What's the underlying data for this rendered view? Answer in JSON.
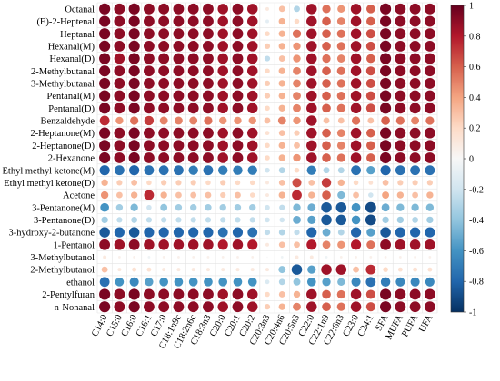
{
  "chart_data": {
    "type": "heatmap",
    "style": "bubble correlation matrix (circle size and color encode r)",
    "rows": [
      "Octanal",
      "(E)-2-Heptenal",
      "Heptanal",
      "Hexanal(M)",
      "Hexanal(D)",
      "2-Methylbutanal",
      "3-Methylbutanal",
      "Pentanal(M)",
      "Pentanal(D)",
      "Benzaldehyde",
      "2-Heptanone(M)",
      "2-Heptanone(D)",
      "2-Hexanone",
      "Ethyl methyl ketone(M)",
      "Ethyl methyl ketone(D)",
      "Acetone",
      "3-Pentanone(M)",
      "3-Pentanone(D)",
      "3-hydroxy-2-butanone",
      "1-Pentanol",
      "3-Methylbutanol",
      "2-Methylbutanol",
      "ethanol",
      "2-Pentylfuran",
      "n-Nonanal"
    ],
    "columns": [
      "C14:0",
      "C15:0",
      "C16:0",
      "C16:1",
      "C17:0",
      "C18:1n9c",
      "C18:2n6c",
      "C18:3n3",
      "C20:0",
      "C20:1",
      "C20:2",
      "C20:3n3",
      "C20:4n6",
      "C20:5n3",
      "C22:0",
      "C22:1n9",
      "C22:6n3",
      "C23:0",
      "C24:1",
      "SFA",
      "MUFA",
      "PUFA",
      "UFA"
    ],
    "colorbar": {
      "ticks": [
        "1",
        "0.8",
        "0.6",
        "0.4",
        "0.2",
        "0",
        "-0.2",
        "-0.4",
        "-0.6",
        "-0.8",
        "-1"
      ],
      "range": [
        -1,
        1
      ],
      "colors": [
        "#053061",
        "#2166ac",
        "#4393c3",
        "#92c5de",
        "#d1e5f0",
        "#f7f7f7",
        "#fddbc7",
        "#f4a582",
        "#d6604d",
        "#b2182b",
        "#67001f"
      ]
    },
    "values": [
      [
        0.95,
        0.9,
        0.95,
        0.9,
        0.9,
        0.9,
        0.9,
        0.9,
        0.85,
        0.9,
        0.85,
        0.1,
        0.3,
        -0.3,
        0.85,
        0.55,
        0.45,
        0.85,
        0.6,
        0.95,
        0.9,
        0.9,
        0.9
      ],
      [
        0.95,
        0.9,
        0.95,
        0.9,
        0.9,
        0.9,
        0.9,
        0.9,
        0.85,
        0.9,
        0.85,
        -0.1,
        0.35,
        0.2,
        0.85,
        0.6,
        0.5,
        0.85,
        0.6,
        0.95,
        0.9,
        0.9,
        0.9
      ],
      [
        0.95,
        0.9,
        0.95,
        0.9,
        0.9,
        0.9,
        0.9,
        0.9,
        0.85,
        0.9,
        0.85,
        0.2,
        0.35,
        0.55,
        0.85,
        0.6,
        0.55,
        0.85,
        0.65,
        0.95,
        0.9,
        0.9,
        0.9
      ],
      [
        0.95,
        0.9,
        0.95,
        0.9,
        0.9,
        0.9,
        0.9,
        0.9,
        0.85,
        0.9,
        0.85,
        0.25,
        0.35,
        0.45,
        0.85,
        0.6,
        0.55,
        0.85,
        0.65,
        0.95,
        0.9,
        0.9,
        0.9
      ],
      [
        0.95,
        0.85,
        0.95,
        0.9,
        0.9,
        0.9,
        0.9,
        0.9,
        0.85,
        0.9,
        0.85,
        -0.25,
        0.3,
        0.45,
        0.85,
        0.55,
        0.5,
        0.85,
        0.6,
        0.95,
        0.9,
        0.9,
        0.9
      ],
      [
        0.95,
        0.9,
        0.95,
        0.9,
        0.9,
        0.9,
        0.9,
        0.9,
        0.85,
        0.9,
        0.85,
        0.2,
        0.35,
        0.5,
        0.85,
        0.6,
        0.55,
        0.85,
        0.65,
        0.95,
        0.9,
        0.9,
        0.9
      ],
      [
        0.95,
        0.9,
        0.95,
        0.9,
        0.9,
        0.9,
        0.9,
        0.9,
        0.85,
        0.9,
        0.85,
        0.25,
        0.35,
        0.5,
        0.85,
        0.6,
        0.55,
        0.85,
        0.65,
        0.95,
        0.9,
        0.9,
        0.9
      ],
      [
        0.95,
        0.9,
        0.95,
        0.9,
        0.9,
        0.9,
        0.9,
        0.9,
        0.85,
        0.9,
        0.85,
        0.25,
        0.35,
        0.5,
        0.85,
        0.6,
        0.55,
        0.85,
        0.65,
        0.95,
        0.9,
        0.9,
        0.9
      ],
      [
        0.95,
        0.9,
        0.95,
        0.9,
        0.9,
        0.9,
        0.9,
        0.9,
        0.85,
        0.9,
        0.85,
        0.2,
        0.35,
        0.5,
        0.85,
        0.6,
        0.55,
        0.85,
        0.65,
        0.95,
        0.9,
        0.9,
        0.9
      ],
      [
        0.75,
        0.45,
        0.55,
        0.7,
        0.5,
        0.5,
        0.5,
        0.55,
        0.45,
        0.45,
        0.45,
        0.3,
        0.5,
        0.45,
        0.85,
        0.3,
        0.3,
        0.55,
        0.3,
        0.6,
        0.55,
        0.5,
        0.55
      ],
      [
        0.95,
        0.9,
        0.95,
        0.9,
        0.9,
        0.9,
        0.9,
        0.9,
        0.85,
        0.9,
        0.85,
        0.15,
        0.3,
        0.25,
        0.85,
        0.6,
        0.5,
        0.85,
        0.6,
        0.95,
        0.9,
        0.9,
        0.9
      ],
      [
        0.95,
        0.9,
        0.95,
        0.9,
        0.9,
        0.9,
        0.9,
        0.9,
        0.85,
        0.9,
        0.85,
        0.2,
        0.35,
        0.3,
        0.85,
        0.6,
        0.5,
        0.85,
        0.6,
        0.95,
        0.9,
        0.9,
        0.9
      ],
      [
        0.95,
        0.9,
        0.95,
        0.9,
        0.9,
        0.9,
        0.9,
        0.9,
        0.85,
        0.9,
        0.85,
        0.2,
        0.35,
        0.45,
        0.85,
        0.6,
        0.55,
        0.85,
        0.6,
        0.95,
        0.9,
        0.9,
        0.9
      ],
      [
        -0.8,
        -0.75,
        -0.8,
        -0.75,
        -0.75,
        -0.75,
        -0.7,
        -0.75,
        -0.7,
        -0.7,
        -0.7,
        -0.2,
        -0.3,
        0.2,
        -0.7,
        -0.3,
        -0.3,
        -0.75,
        -0.55,
        -0.8,
        -0.75,
        -0.75,
        -0.75
      ],
      [
        0.35,
        0.25,
        0.3,
        0.2,
        0.25,
        0.25,
        0.25,
        0.2,
        0.25,
        0.2,
        0.2,
        0.1,
        0.3,
        0.65,
        0.3,
        0.7,
        0.35,
        0.2,
        0.15,
        0.3,
        0.25,
        0.25,
        0.25
      ],
      [
        0.45,
        0.3,
        0.35,
        0.75,
        0.35,
        0.3,
        0.3,
        0.3,
        0.25,
        0.3,
        0.2,
        0.1,
        0.35,
        0.75,
        0.35,
        0.6,
        -0.45,
        0.3,
        -0.2,
        0.4,
        0.35,
        0.3,
        0.35
      ],
      [
        -0.6,
        -0.35,
        -0.45,
        -0.2,
        -0.4,
        -0.35,
        -0.35,
        -0.35,
        -0.35,
        -0.35,
        -0.35,
        -0.2,
        -0.25,
        -0.45,
        -0.5,
        -0.85,
        -0.85,
        -0.6,
        -0.9,
        -0.5,
        -0.45,
        -0.45,
        -0.45
      ],
      [
        -0.35,
        -0.25,
        -0.3,
        -0.25,
        -0.25,
        -0.25,
        -0.25,
        -0.25,
        -0.25,
        -0.25,
        -0.25,
        -0.2,
        -0.2,
        -0.5,
        -0.55,
        -0.85,
        -0.85,
        -0.6,
        -0.9,
        -0.35,
        -0.35,
        -0.3,
        -0.35
      ],
      [
        -0.85,
        -0.8,
        -0.85,
        -0.8,
        -0.8,
        -0.8,
        -0.8,
        -0.8,
        -0.75,
        -0.8,
        -0.75,
        -0.25,
        -0.3,
        -0.25,
        -0.8,
        -0.5,
        -0.3,
        -0.8,
        -0.55,
        -0.85,
        -0.8,
        -0.8,
        -0.8
      ],
      [
        0.9,
        0.85,
        0.9,
        0.85,
        0.85,
        0.85,
        0.85,
        0.85,
        0.8,
        0.85,
        0.8,
        0.1,
        0.3,
        0.3,
        0.8,
        0.5,
        0.45,
        0.8,
        0.55,
        0.9,
        0.85,
        0.85,
        0.85
      ],
      [
        0.1,
        0.05,
        0.05,
        -0.05,
        0.05,
        0.05,
        0.05,
        0.05,
        0.05,
        0.05,
        0.05,
        0.0,
        -0.05,
        0.1,
        0.1,
        -0.05,
        0.05,
        0.05,
        0.05,
        0.05,
        0.05,
        0.05,
        0.05
      ],
      [
        0.3,
        0.1,
        0.15,
        0.15,
        0.1,
        0.1,
        0.1,
        0.1,
        0.1,
        0.1,
        0.1,
        0.1,
        -0.4,
        -0.85,
        -0.55,
        0.85,
        0.85,
        0.3,
        0.75,
        0.2,
        0.15,
        0.15,
        0.15
      ],
      [
        -0.75,
        -0.6,
        -0.65,
        -0.55,
        -0.6,
        -0.6,
        -0.6,
        -0.6,
        -0.6,
        -0.6,
        -0.6,
        -0.15,
        -0.3,
        -0.4,
        -0.6,
        -0.55,
        -0.45,
        -0.65,
        -0.75,
        -0.7,
        -0.65,
        -0.65,
        -0.65
      ],
      [
        0.95,
        0.9,
        0.95,
        0.9,
        0.9,
        0.9,
        0.9,
        0.9,
        0.85,
        0.9,
        0.85,
        0.2,
        0.3,
        0.35,
        0.85,
        0.6,
        0.55,
        0.85,
        0.65,
        0.95,
        0.9,
        0.9,
        0.9
      ],
      [
        0.95,
        0.9,
        0.95,
        0.9,
        0.9,
        0.9,
        0.9,
        0.9,
        0.85,
        0.9,
        0.85,
        0.25,
        0.35,
        0.5,
        0.85,
        0.6,
        0.55,
        0.85,
        0.65,
        0.95,
        0.9,
        0.9,
        0.9
      ]
    ]
  }
}
